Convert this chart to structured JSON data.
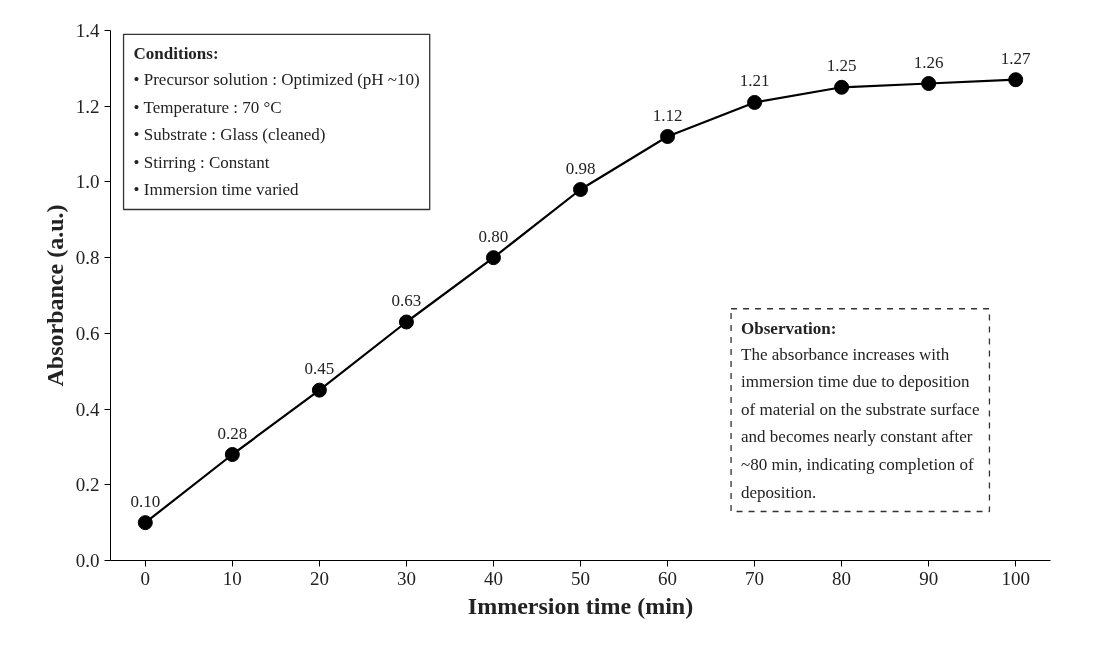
{
  "chart_data": {
    "type": "line",
    "xlabel": "Immersion time (min)",
    "ylabel": "Absorbance (a.u.)",
    "x": [
      0,
      10,
      20,
      30,
      40,
      50,
      60,
      70,
      80,
      90,
      100
    ],
    "series": [
      {
        "color": "#000000",
        "values": [
          0.1,
          0.28,
          0.45,
          0.63,
          0.8,
          0.98,
          1.12,
          1.21,
          1.25,
          1.26,
          1.27
        ],
        "value_labels": [
          "0.10",
          "0.28",
          "0.45",
          "0.63",
          "0.80",
          "0.98",
          "1.12",
          "1.21",
          "1.25",
          "1.26",
          "1.27"
        ]
      }
    ],
    "xlim": [
      -4,
      104
    ],
    "xticks": [
      0,
      10,
      20,
      30,
      40,
      50,
      60,
      70,
      80,
      90,
      100
    ],
    "ylim": [
      0,
      1.4
    ],
    "yticks": [
      {
        "value": 0,
        "label": "0.0"
      },
      0.2,
      0.4,
      0.6,
      0.8,
      {
        "value": 1.0,
        "label": "1.0"
      },
      1.2,
      1.4
    ],
    "marker": "circle",
    "line_style": "solid",
    "grid": false,
    "annotations": [
      "Conditions:",
      "• Precursor solution : Optimized (pH ~10)\n• Temperature : 70 °C\n• Substrate : Glass (cleaned)\n• Stirring : Constant\n• Immersion time varied",
      "Observation:",
      "The absorbance increases with\nimmersion time due to deposition\nof material on the substrate surface\nand becomes nearly constant after\n~80 min, indicating completion of\ndeposition."
    ]
  }
}
